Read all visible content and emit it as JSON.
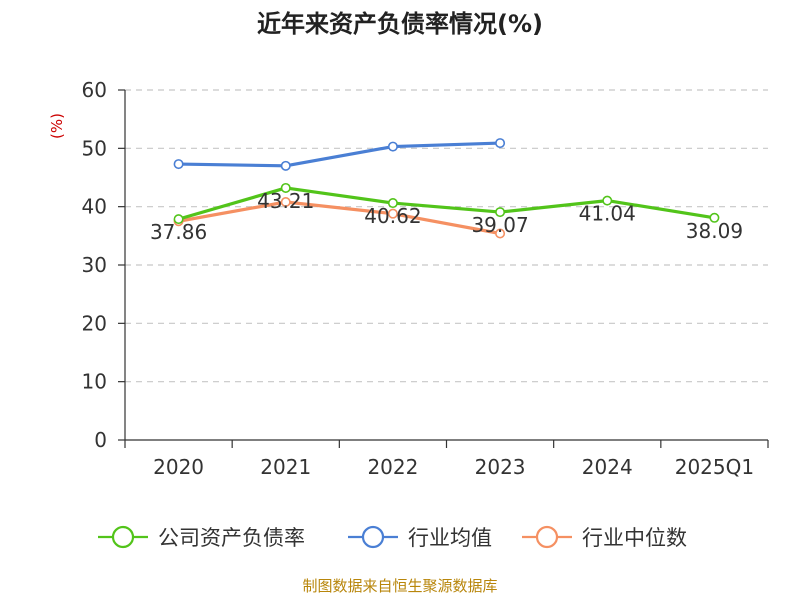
{
  "chart_data": {
    "type": "line",
    "title": "近年来资产负债率情况(%)",
    "ylabel": "(%)",
    "ylim": [
      0,
      60
    ],
    "yticks": [
      0,
      10,
      20,
      30,
      40,
      50,
      60
    ],
    "categories": [
      "2020",
      "2021",
      "2022",
      "2023",
      "2024",
      "2025Q1"
    ],
    "grid": true,
    "legend_position": "bottom",
    "series": [
      {
        "name": "公司资产负债率",
        "color": "#52c41a",
        "values": [
          37.86,
          43.21,
          40.62,
          39.07,
          41.04,
          38.09
        ],
        "labels": [
          "37.86",
          "43.21",
          "40.62",
          "39.07",
          "41.04",
          "38.09"
        ]
      },
      {
        "name": "行业均值",
        "color": "#4a7fd4",
        "values": [
          47.3,
          47.0,
          50.3,
          50.9,
          null,
          null
        ]
      },
      {
        "name": "行业中位数",
        "color": "#f59062",
        "values": [
          37.5,
          40.8,
          38.8,
          35.4,
          null,
          null
        ]
      }
    ]
  },
  "footer": {
    "source": "制图数据来自恒生聚源数据库"
  },
  "colors": {
    "title": "#222222",
    "ylabel": "#cc0000",
    "grid": "#c8c8c8",
    "axis": "#333333",
    "footer": "#b8860b"
  }
}
